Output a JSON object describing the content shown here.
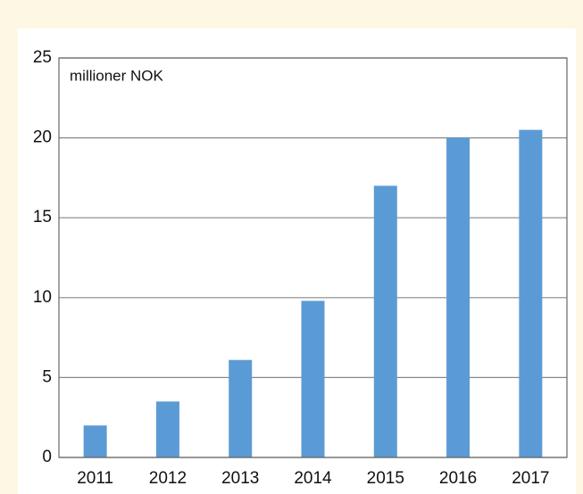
{
  "chart_data": {
    "type": "bar",
    "y_label": "millioner NOK",
    "categories": [
      "2011",
      "2012",
      "2013",
      "2014",
      "2015",
      "2016",
      "2017"
    ],
    "values": [
      2.0,
      3.5,
      6.1,
      9.8,
      17.0,
      20.0,
      20.5
    ],
    "color": "#5b9bd5",
    "ylim": [
      0,
      25
    ],
    "yticks": [
      0,
      5,
      10,
      15,
      20,
      25
    ],
    "grid": true
  }
}
